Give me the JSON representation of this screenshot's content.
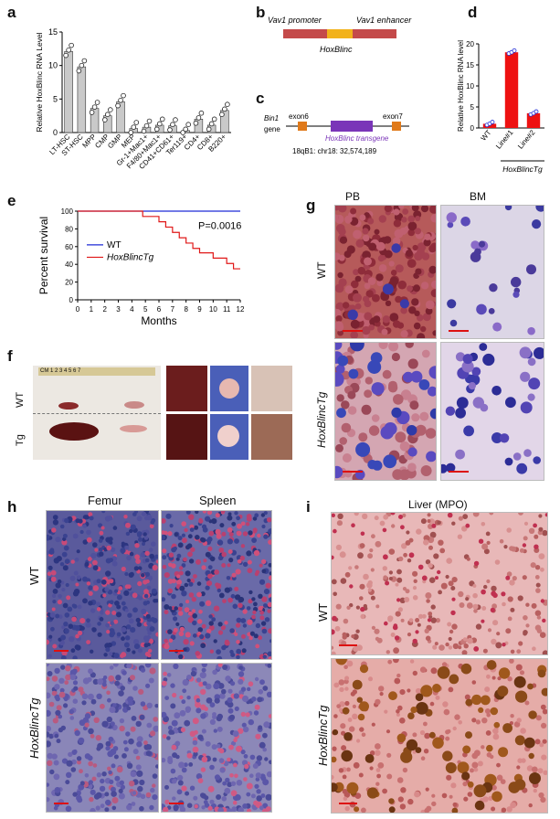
{
  "panel_labels": {
    "a": "a",
    "b": "b",
    "c": "c",
    "d": "d",
    "e": "e",
    "f": "f",
    "g": "g",
    "h": "h",
    "i": "i"
  },
  "colors": {
    "bar_gray": "#c9c9c9",
    "bar_red": "#ee1111",
    "wt_line": "#1f2bd6",
    "tg_line": "#e01818",
    "exon": "#e07a1a",
    "transgene": "#7a35b8",
    "promoter": "#c44a4a",
    "hoxblinc_yellow": "#f2b21b"
  },
  "chart_data": [
    {
      "type": "bar",
      "panel": "a",
      "ylabel": "Relative HoxBlinc RNA Level",
      "ylim": [
        0,
        15
      ],
      "yticks": [
        "0",
        "5",
        "10",
        "15"
      ],
      "categories": [
        "LT-HSC",
        "ST-HSC",
        "MPP",
        "CMP",
        "GMP",
        "MEP",
        "Gr-1+Mac1+",
        "F4/80+Mac1+",
        "CD41+CD61+",
        "Ter119+",
        "CD4+",
        "CD8+",
        "B220+"
      ],
      "values": [
        12.1,
        9.8,
        3.6,
        2.5,
        4.6,
        0.6,
        0.8,
        1.1,
        1.0,
        0.3,
        2.0,
        1.1,
        3.3
      ]
    },
    {
      "type": "bar",
      "panel": "d",
      "ylabel": "Relative HoxBlinc RNA level",
      "ylim": [
        0,
        20
      ],
      "yticks": [
        "0",
        "5",
        "10",
        "15",
        "20"
      ],
      "categories": [
        "WT",
        "Line#1",
        "Line#2"
      ],
      "values": [
        1.0,
        18.0,
        3.5
      ],
      "group_label": "HoxBlincTg"
    },
    {
      "type": "line",
      "panel": "e",
      "ylabel": "Percent survival",
      "xlabel": "Months",
      "xlim": [
        0,
        12
      ],
      "ylim": [
        0,
        100
      ],
      "xticks": [
        "0",
        "1",
        "2",
        "3",
        "4",
        "5",
        "6",
        "7",
        "8",
        "9",
        "10",
        "11",
        "12"
      ],
      "yticks": [
        "0",
        "20",
        "40",
        "60",
        "80",
        "100"
      ],
      "annotation": "P=0.0016",
      "series": [
        {
          "name": "WT",
          "x": [
            0,
            12
          ],
          "y": [
            100,
            100
          ]
        },
        {
          "name": "HoxBlincTg",
          "x": [
            0,
            4.8,
            4.8,
            6,
            6,
            6.5,
            6.5,
            7,
            7,
            7.5,
            7.5,
            8,
            8,
            8.5,
            8.5,
            9,
            9,
            9.5,
            9.5,
            10,
            10,
            10.5,
            10.5,
            11,
            11,
            11.5,
            11.5,
            12
          ],
          "y": [
            100,
            100,
            94,
            94,
            88,
            88,
            82,
            82,
            76,
            76,
            70,
            70,
            64,
            64,
            58,
            58,
            53,
            53,
            53,
            53,
            47,
            47,
            47,
            47,
            41,
            41,
            35,
            35
          ]
        }
      ]
    }
  ],
  "panel_b": {
    "promoter": "Vav1 promoter",
    "enhancer": "Vav1 enhancer",
    "insert": "HoxBlinc"
  },
  "panel_c": {
    "gene_italic": "Bin1",
    "gene": "gene",
    "exon_left": "exon6",
    "exon_right": "exon7",
    "transgene": "HoxBlinc transgene",
    "locus": "18qB1: chr18: 32,574,189"
  },
  "panel_e": {
    "legend_wt": "WT",
    "legend_tg": "HoxBlincTg"
  },
  "panel_f": {
    "row_wt": "WT",
    "row_tg": "Tg",
    "ruler": "CM 1 2 3 4 5 6 7"
  },
  "panel_g": {
    "col_pb": "PB",
    "col_bm": "BM",
    "row_wt": "WT",
    "row_tg": "HoxBlincTg"
  },
  "panel_h": {
    "col_femur": "Femur",
    "col_spleen": "Spleen",
    "row_wt": "WT",
    "row_tg": "HoxBlincTg"
  },
  "panel_i": {
    "title": "Liver (MPO)",
    "row_wt": "WT",
    "row_tg": "HoxBlincTg"
  }
}
